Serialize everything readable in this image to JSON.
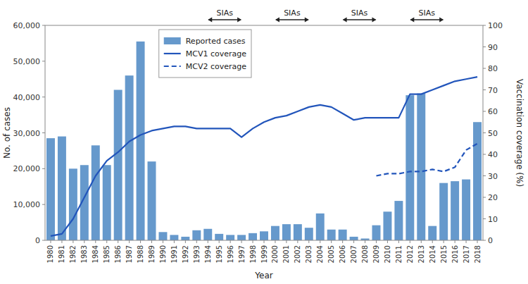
{
  "chart_data": {
    "type": "bar",
    "xlabel": "Year",
    "ylabel": "No. of cases",
    "y2label": "Vaccination coverage (%)",
    "x": [
      1980,
      1981,
      1982,
      1983,
      1984,
      1985,
      1986,
      1987,
      1988,
      1989,
      1990,
      1991,
      1992,
      1993,
      1994,
      1995,
      1996,
      1997,
      1998,
      1999,
      2000,
      2001,
      2002,
      2003,
      2004,
      2005,
      2006,
      2007,
      2008,
      2009,
      2010,
      2011,
      2012,
      2013,
      2014,
      2015,
      2016,
      2017,
      2018
    ],
    "xlim": [
      1979.5,
      2018.5
    ],
    "xticks": [
      1980,
      1981,
      1982,
      1983,
      1984,
      1985,
      1986,
      1987,
      1988,
      1989,
      1990,
      1991,
      1992,
      1993,
      1994,
      1995,
      1996,
      1997,
      1998,
      1999,
      2000,
      2001,
      2002,
      2003,
      2004,
      2005,
      2006,
      2007,
      2008,
      2009,
      2010,
      2011,
      2012,
      2013,
      2014,
      2015,
      2016,
      2017,
      2018
    ],
    "ylim": [
      0,
      60000
    ],
    "yticks": [
      0,
      {
        "value": 10000,
        "label": "10,000"
      },
      {
        "value": 20000,
        "label": "20,000"
      },
      {
        "value": 30000,
        "label": "30,000"
      },
      {
        "value": 40000,
        "label": "40,000"
      },
      {
        "value": 50000,
        "label": "50,000"
      },
      {
        "value": 60000,
        "label": "60,000"
      }
    ],
    "y2lim": [
      0,
      100
    ],
    "y2ticks": [
      0,
      10,
      20,
      30,
      40,
      50,
      60,
      70,
      80,
      90,
      100
    ],
    "grid": false,
    "legend": "top",
    "series": [
      {
        "name": "Reported cases",
        "type": "bar",
        "color": "#6699CC",
        "values": [
          28500,
          29000,
          20000,
          21000,
          26500,
          21000,
          42000,
          46000,
          55500,
          22000,
          2300,
          1500,
          1000,
          2800,
          3200,
          1800,
          1500,
          1500,
          2000,
          2500,
          4000,
          4500,
          4500,
          3500,
          7500,
          3000,
          3000,
          1000,
          500,
          4200,
          8000,
          11000,
          40500,
          41000,
          4000,
          16000,
          16500,
          17000,
          33000
        ]
      },
      {
        "name": "MCV1 coverage",
        "type": "line",
        "axis": "y2",
        "color": "#2255BB",
        "line_style": "solid",
        "values": [
          2,
          3,
          10,
          20,
          30,
          37,
          41,
          46,
          49,
          51,
          52,
          53,
          53,
          52,
          52,
          52,
          52,
          48,
          52,
          55,
          57,
          58,
          60,
          62,
          63,
          62,
          59,
          56,
          57,
          57,
          57,
          57,
          68,
          68,
          70,
          72,
          74,
          75,
          76
        ]
      },
      {
        "name": "MCV2 coverage",
        "type": "line",
        "axis": "y2",
        "color": "#2255BB",
        "line_style": "dashed",
        "values": [
          null,
          null,
          null,
          null,
          null,
          null,
          null,
          null,
          null,
          null,
          null,
          null,
          null,
          null,
          null,
          null,
          null,
          null,
          null,
          null,
          null,
          null,
          null,
          null,
          null,
          null,
          null,
          null,
          null,
          30,
          31,
          31,
          32,
          32,
          33,
          32,
          34,
          42,
          45
        ]
      }
    ],
    "annotations": [
      {
        "text": "SIAs",
        "x_start": 1994,
        "x_end": 1997
      },
      {
        "text": "SIAs",
        "x_start": 2000,
        "x_end": 2003
      },
      {
        "text": "SIAs",
        "x_start": 2006,
        "x_end": 2009
      },
      {
        "text": "SIAs",
        "x_start": 2012,
        "x_end": 2015
      }
    ]
  }
}
